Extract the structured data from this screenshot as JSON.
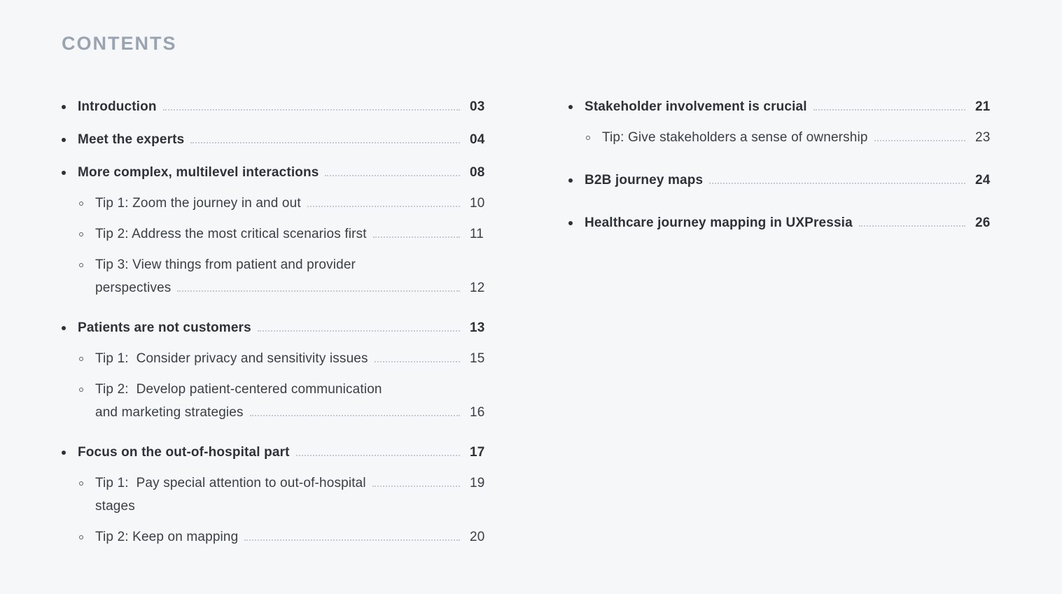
{
  "page": {
    "heading": "CONTENTS",
    "background": "#f6f7f9",
    "heading_color": "#9aa4b1",
    "text_color": "#3a3e45",
    "strong_text_color": "#2e3238",
    "leader_color": "#c4c9d2"
  },
  "columns": [
    {
      "side": "left",
      "sections": [
        {
          "title": "Introduction",
          "page": "03",
          "tips": []
        },
        {
          "title": "Meet the experts",
          "page": "04",
          "tips": []
        },
        {
          "title": "More complex, multilevel interactions",
          "page": "08",
          "tips": [
            {
              "lines": [
                {
                  "text": "Tip 1: Zoom the journey in and out",
                  "page": "10"
                }
              ]
            },
            {
              "lines": [
                {
                  "text": "Tip 2: Address the most critical scenarios first",
                  "page": "11"
                }
              ]
            },
            {
              "lines": [
                {
                  "text": "Tip 3: View things from patient and provider"
                },
                {
                  "text": "perspectives",
                  "page": "12"
                }
              ]
            }
          ]
        },
        {
          "title": "Patients are not customers",
          "page": "13",
          "tips": [
            {
              "lines": [
                {
                  "text": "Tip 1:  Consider privacy and sensitivity issues",
                  "page": "15"
                }
              ]
            },
            {
              "lines": [
                {
                  "text": "Tip 2:  Develop patient-centered communication"
                },
                {
                  "text": "and marketing strategies",
                  "page": "16"
                }
              ]
            }
          ]
        },
        {
          "title": "Focus on the out-of-hospital part",
          "page": "17",
          "tips": [
            {
              "lines": [
                {
                  "text": "Tip 1:  Pay special attention to out-of-hospital",
                  "page": "19"
                },
                {
                  "text": "stages"
                }
              ]
            },
            {
              "lines": [
                {
                  "text": "Tip 2: Keep on mapping",
                  "page": "20"
                }
              ]
            }
          ]
        }
      ]
    },
    {
      "side": "right",
      "sections": [
        {
          "title": "Stakeholder involvement is crucial",
          "page": "21",
          "tips": [
            {
              "lines": [
                {
                  "text": "Tip: Give stakeholders a sense of ownership",
                  "page": "23"
                }
              ]
            }
          ]
        },
        {
          "title": "B2B journey maps",
          "page": "24",
          "tips": []
        },
        {
          "title": "Healthcare journey mapping in UXPressia",
          "page": "26",
          "tips": []
        }
      ]
    }
  ]
}
